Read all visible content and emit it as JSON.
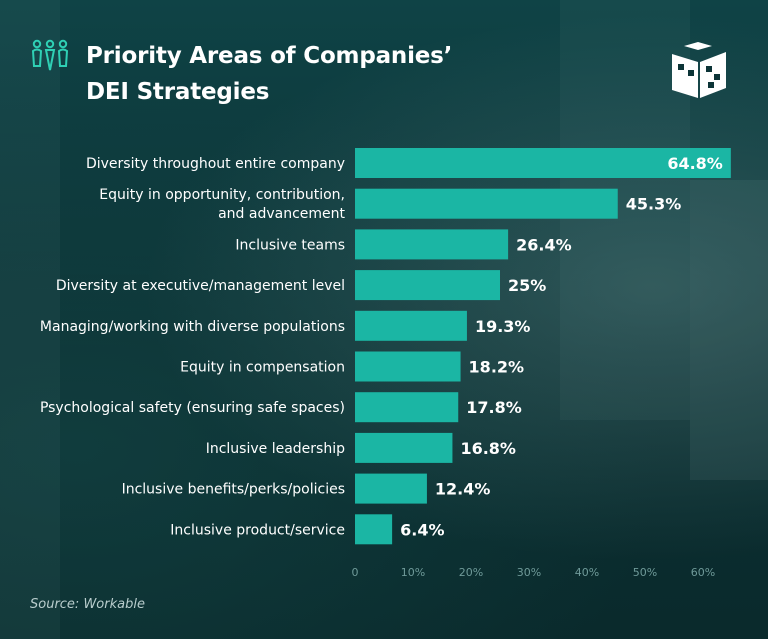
{
  "title": "Priority Areas of Companies’ DEI Strategies",
  "source": "Source: Workable",
  "colors": {
    "bar": "#1bb6a4",
    "bar_label": "#ffffff",
    "category_label": "#ffffff",
    "tick_label": "#6f9a99",
    "accent_icon": "#2fd0b5"
  },
  "icons": {
    "title_icon": "people-diversity-icon",
    "brand_logo": "open-book-logo-icon"
  },
  "chart_data": {
    "type": "bar",
    "orientation": "horizontal",
    "title": "Priority Areas of Companies’ DEI Strategies",
    "categories": [
      [
        "Diversity throughout entire company"
      ],
      [
        "Equity in opportunity, contribution,",
        "and advancement"
      ],
      [
        "Inclusive teams"
      ],
      [
        "Diversity at executive/management level"
      ],
      [
        "Managing/working with diverse populations"
      ],
      [
        "Equity in compensation"
      ],
      [
        "Psychological safety (ensuring safe spaces)"
      ],
      [
        "Inclusive leadership"
      ],
      [
        "Inclusive benefits/perks/policies"
      ],
      [
        "Inclusive product/service"
      ]
    ],
    "values": [
      64.8,
      45.3,
      26.4,
      25,
      19.3,
      18.2,
      17.8,
      16.8,
      12.4,
      6.4
    ],
    "value_labels": [
      "64.8%",
      "45.3%",
      "26.4%",
      "25%",
      "19.3%",
      "18.2%",
      "17.8%",
      "16.8%",
      "12.4%",
      "6.4%"
    ],
    "xlim": [
      0,
      65
    ],
    "ticks": [
      0,
      10,
      20,
      30,
      40,
      50,
      60
    ],
    "tick_labels": [
      "0",
      "10%",
      "20%",
      "30%",
      "40%",
      "50%",
      "60%"
    ],
    "xlabel": "",
    "ylabel": "",
    "grid": false,
    "legend": "none"
  }
}
